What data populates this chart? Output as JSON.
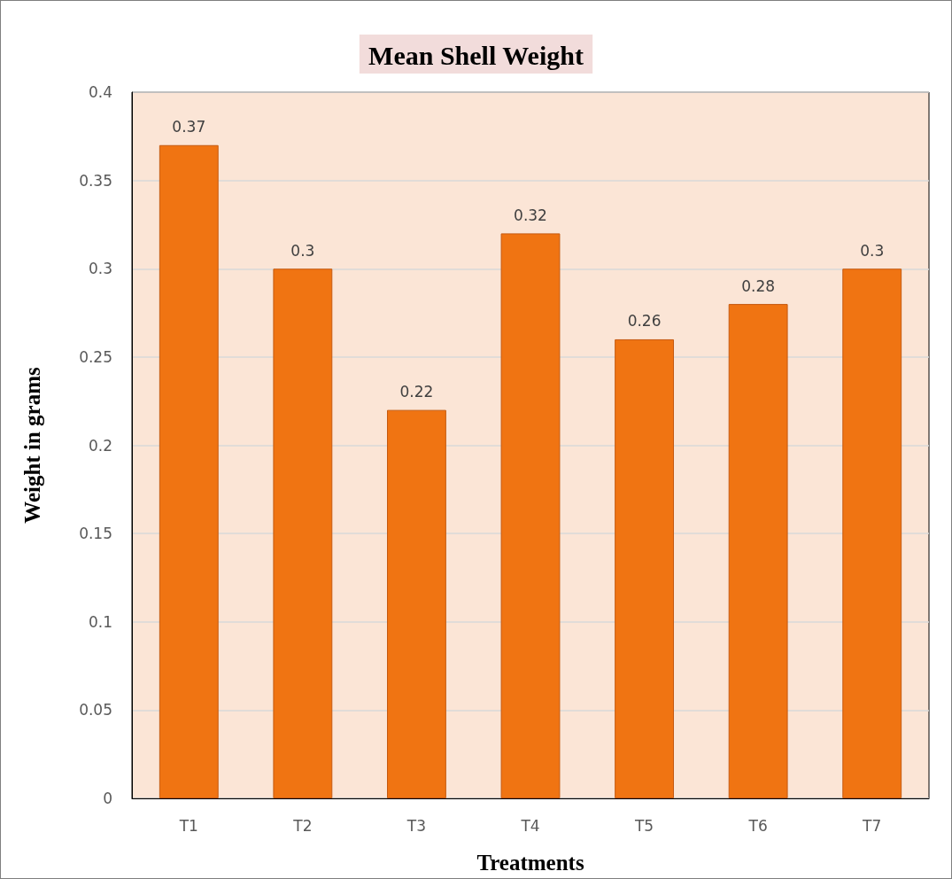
{
  "chart_data": {
    "type": "bar",
    "title": "Mean Shell Weight",
    "xlabel": "Treatments",
    "ylabel": "Weight in grams",
    "categories": [
      "T1",
      "T2",
      "T3",
      "T4",
      "T5",
      "T6",
      "T7"
    ],
    "values": [
      0.37,
      0.3,
      0.22,
      0.32,
      0.26,
      0.28,
      0.3
    ],
    "color": "#f07412",
    "ylim": [
      0,
      0.4
    ],
    "yticks": [
      0,
      0.05,
      0.1,
      0.15,
      0.2,
      0.25,
      0.3,
      0.35,
      0.4
    ],
    "grid": "y",
    "data_labels": true
  }
}
